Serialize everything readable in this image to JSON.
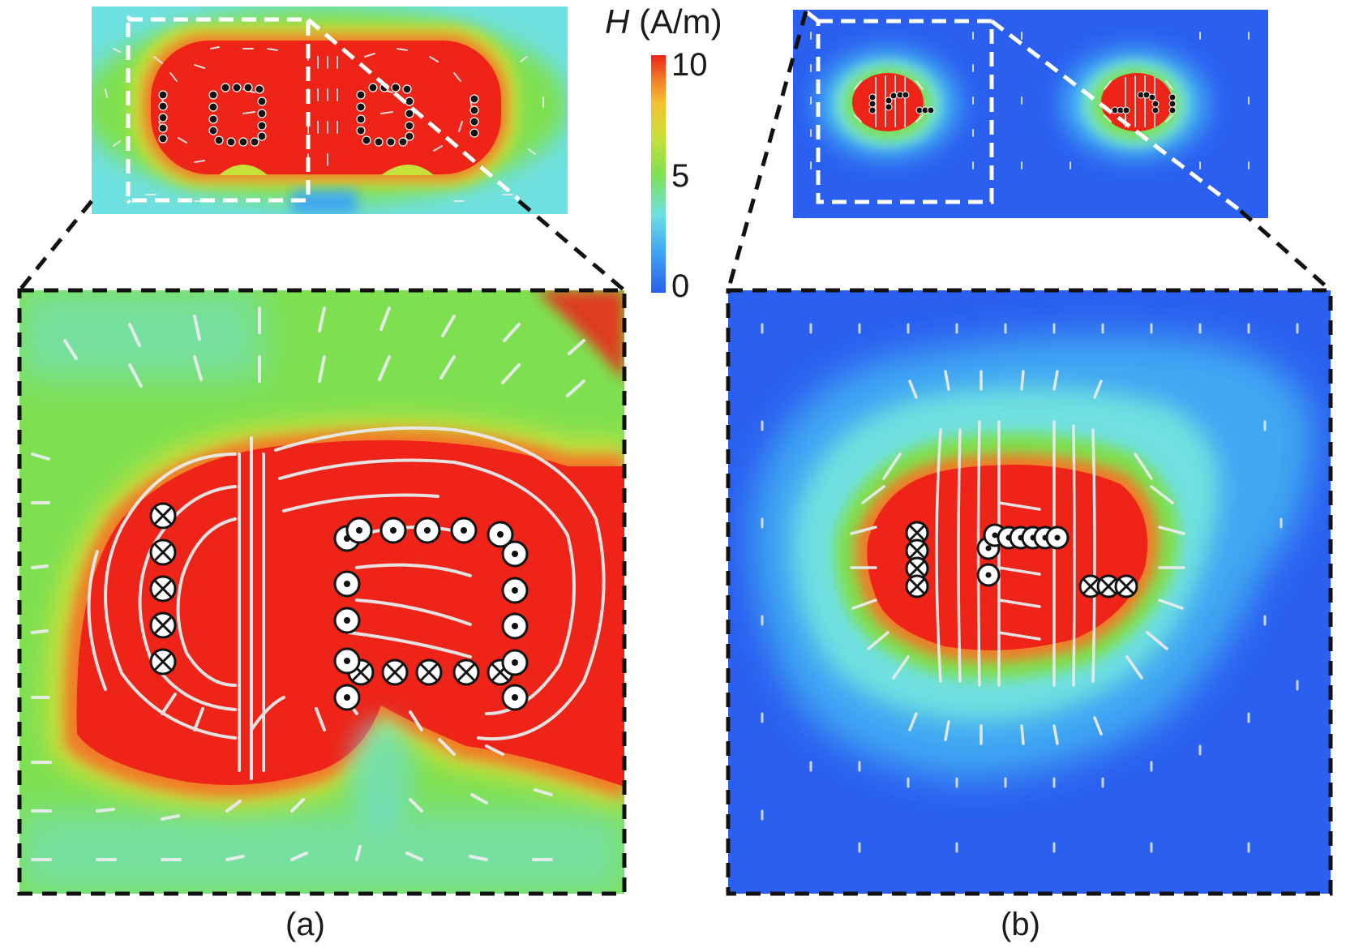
{
  "colorbar": {
    "symbol": "H",
    "unit": "(A/m)",
    "ticks": [
      "10",
      "5",
      "0"
    ],
    "range": [
      0,
      10
    ],
    "colors": [
      "#2a5ff0",
      "#3fa8f2",
      "#6fe0e0",
      "#7ee050",
      "#c8e03a",
      "#f6c030",
      "#f27a28",
      "#ee2418"
    ]
  },
  "panels": [
    {
      "label": "(a)",
      "field_level": "high",
      "conductor_symbols": [
        "dot",
        "cross"
      ]
    },
    {
      "label": "(b)",
      "field_level": "low",
      "conductor_symbols": [
        "dot",
        "cross"
      ]
    }
  ],
  "colors": {
    "high_field": "#ee2418",
    "mid_field": "#7ee050",
    "low_field": "#2a5ff0",
    "inset_border_overview": "#ffffff",
    "inset_border_zoom": "#111111",
    "arrow": "#e8ecec"
  }
}
